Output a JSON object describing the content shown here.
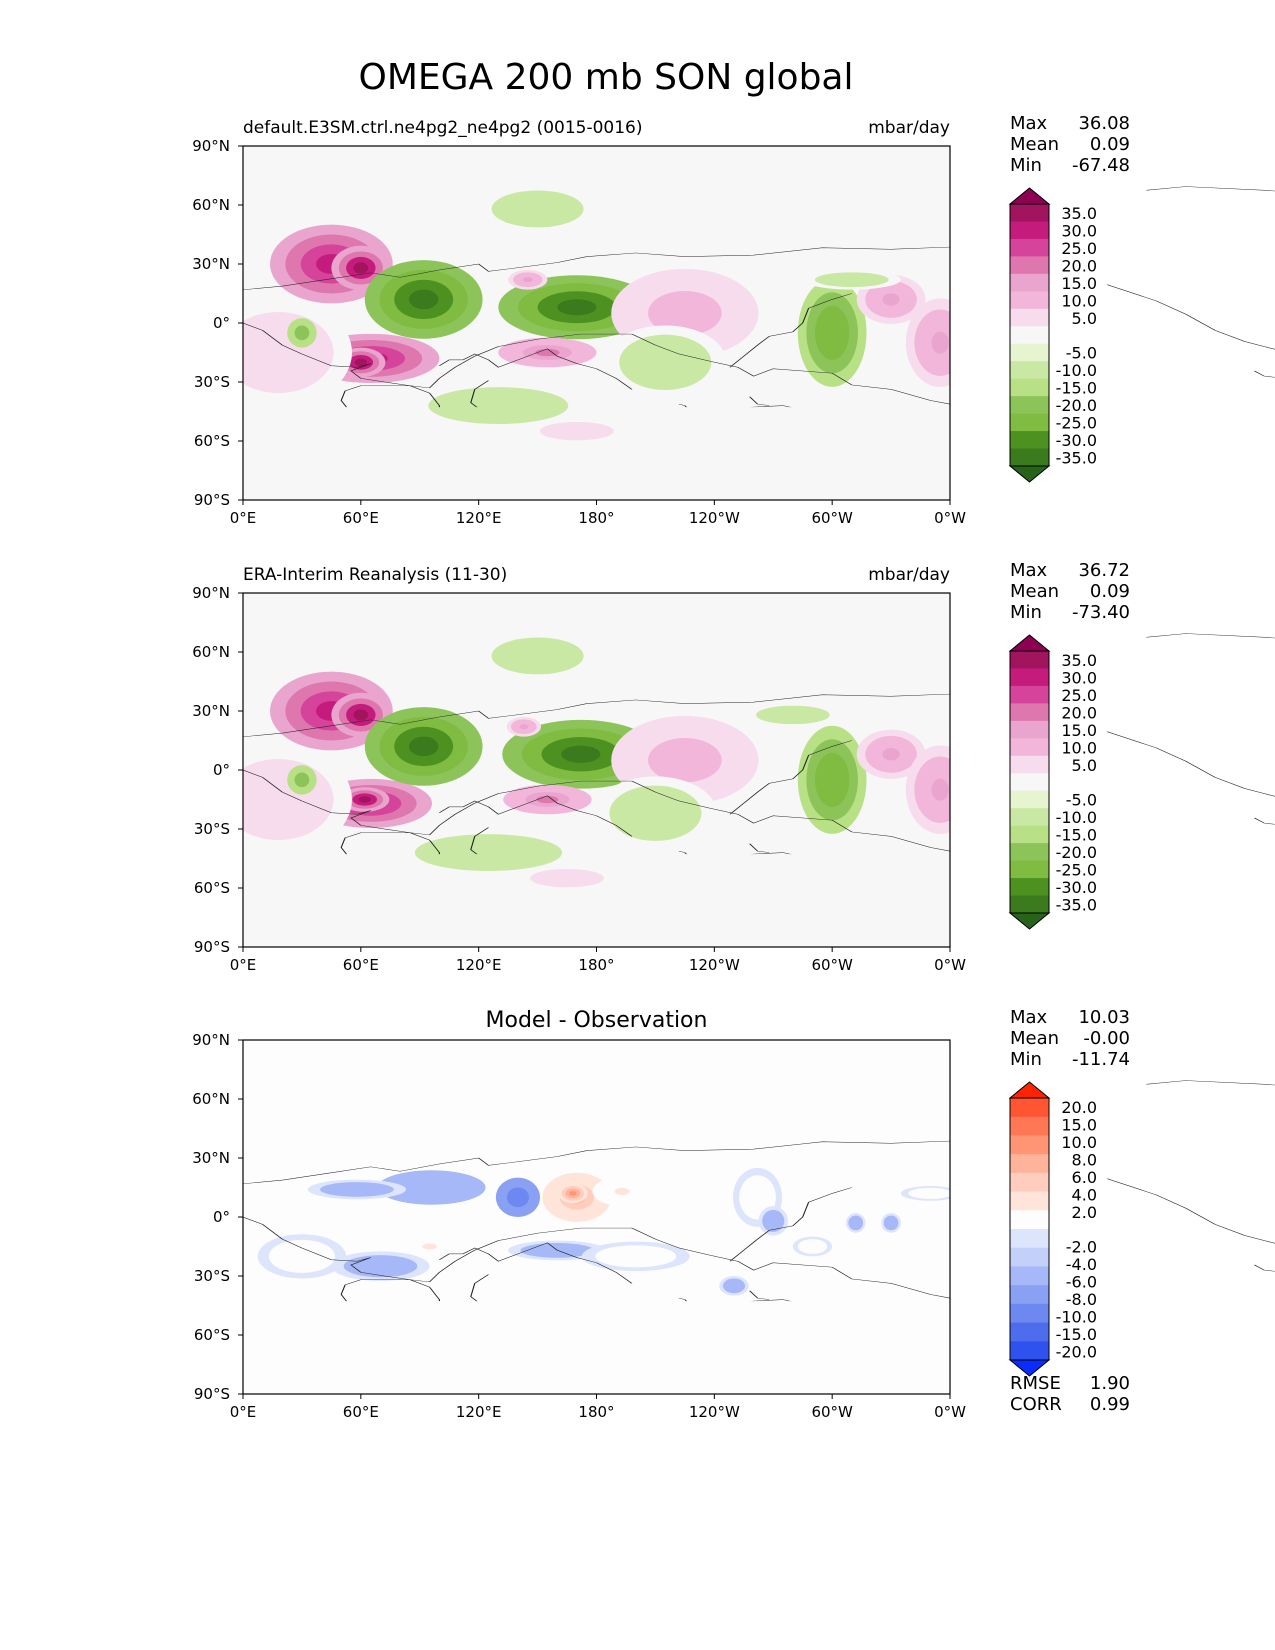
{
  "title": "OMEGA 200 mb SON global",
  "colors": {
    "land_line": "#222222",
    "ocean_bg": "#f7f7f7",
    "diff_bg": "#fdfdfd"
  },
  "chart_data": [
    {
      "type": "heatmap",
      "panel": "test",
      "left_title": "default.E3SM.ctrl.ne4pg2_ne4pg2 (0015-0016)",
      "right_title": "mbar/day",
      "xlabel": "",
      "ylabel": "",
      "xlim": [
        0,
        360
      ],
      "ylim": [
        -90,
        90
      ],
      "x_ticks": [
        "0°E",
        "60°E",
        "120°E",
        "180°",
        "120°W",
        "60°W",
        "0°W"
      ],
      "y_ticks": [
        "90°N",
        "60°N",
        "30°N",
        "0°",
        "30°S",
        "60°S",
        "90°S"
      ],
      "stats": [
        {
          "label": "Max",
          "value": "36.08"
        },
        {
          "label": "Mean",
          "value": "0.09"
        },
        {
          "label": "Min",
          "value": "-67.48"
        }
      ],
      "colorbar_levels": [
        "35.0",
        "30.0",
        "25.0",
        "20.0",
        "15.0",
        "10.0",
        "5.0",
        "-5.0",
        "-10.0",
        "-15.0",
        "-20.0",
        "-25.0",
        "-30.0",
        "-35.0"
      ],
      "colorbar_colors": [
        "#8e0152",
        "#a1145e",
        "#c51b7d",
        "#d6439a",
        "#de77ae",
        "#eaa5cf",
        "#f1b6da",
        "#f7dced",
        "#f7f7f7",
        "#e6f5d0",
        "#c9e8a3",
        "#b8e186",
        "#8cc45a",
        "#7fbc41",
        "#4d9221",
        "#3b7a1d",
        "#276419"
      ],
      "features": [
        {
          "lon": 45,
          "lat": 30,
          "rx": 25,
          "ry": 16,
          "value": 30
        },
        {
          "lon": 60,
          "lat": 28,
          "rx": 12,
          "ry": 9,
          "value": 36
        },
        {
          "lon": 65,
          "lat": -18,
          "rx": 28,
          "ry": 10,
          "value": 30
        },
        {
          "lon": 60,
          "lat": -20,
          "rx": 10,
          "ry": 6,
          "value": 36
        },
        {
          "lon": 18,
          "lat": -15,
          "rx": 30,
          "ry": 22,
          "value": 8
        },
        {
          "lon": 30,
          "lat": -5,
          "rx": 6,
          "ry": 6,
          "value": -20
        },
        {
          "lon": 92,
          "lat": 12,
          "rx": 24,
          "ry": 16,
          "value": -35
        },
        {
          "lon": 170,
          "lat": 8,
          "rx": 32,
          "ry": 13,
          "value": -35
        },
        {
          "lon": 155,
          "lat": -15,
          "rx": 20,
          "ry": 6,
          "value": 20
        },
        {
          "lon": 145,
          "lat": 22,
          "rx": 8,
          "ry": 4,
          "value": 15
        },
        {
          "lon": 225,
          "lat": 5,
          "rx": 30,
          "ry": 18,
          "value": 12
        },
        {
          "lon": 300,
          "lat": -5,
          "rx": 14,
          "ry": 22,
          "value": -25
        },
        {
          "lon": 330,
          "lat": 12,
          "rx": 14,
          "ry": 10,
          "value": 15
        },
        {
          "lon": 355,
          "lat": -10,
          "rx": 14,
          "ry": 18,
          "value": 15
        },
        {
          "lon": 130,
          "lat": -42,
          "rx": 38,
          "ry": 10,
          "value": -8
        },
        {
          "lon": 215,
          "lat": -20,
          "rx": 25,
          "ry": 15,
          "value": -8
        },
        {
          "lon": 150,
          "lat": 58,
          "rx": 25,
          "ry": 10,
          "value": -8
        },
        {
          "lon": 310,
          "lat": 22,
          "rx": 20,
          "ry": 4,
          "value": -8
        },
        {
          "lon": 170,
          "lat": -55,
          "rx": 20,
          "ry": 5,
          "value": 8
        }
      ]
    },
    {
      "type": "heatmap",
      "panel": "reference",
      "left_title": "ERA-Interim Reanalysis (11-30)",
      "right_title": "mbar/day",
      "xlabel": "",
      "ylabel": "",
      "xlim": [
        0,
        360
      ],
      "ylim": [
        -90,
        90
      ],
      "x_ticks": [
        "0°E",
        "60°E",
        "120°E",
        "180°",
        "120°W",
        "60°W",
        "0°W"
      ],
      "y_ticks": [
        "90°N",
        "60°N",
        "30°N",
        "0°",
        "30°S",
        "60°S",
        "90°S"
      ],
      "stats": [
        {
          "label": "Max",
          "value": "36.72"
        },
        {
          "label": "Mean",
          "value": "0.09"
        },
        {
          "label": "Min",
          "value": "-73.40"
        }
      ],
      "colorbar_levels": [
        "35.0",
        "30.0",
        "25.0",
        "20.0",
        "15.0",
        "10.0",
        "5.0",
        "-5.0",
        "-10.0",
        "-15.0",
        "-20.0",
        "-25.0",
        "-30.0",
        "-35.0"
      ],
      "colorbar_colors": [
        "#8e0152",
        "#a1145e",
        "#c51b7d",
        "#d6439a",
        "#de77ae",
        "#eaa5cf",
        "#f1b6da",
        "#f7dced",
        "#f7f7f7",
        "#e6f5d0",
        "#c9e8a3",
        "#b8e186",
        "#8cc45a",
        "#7fbc41",
        "#4d9221",
        "#3b7a1d",
        "#276419"
      ],
      "features": [
        {
          "lon": 45,
          "lat": 30,
          "rx": 25,
          "ry": 16,
          "value": 30
        },
        {
          "lon": 60,
          "lat": 28,
          "rx": 12,
          "ry": 9,
          "value": 36
        },
        {
          "lon": 65,
          "lat": -17,
          "rx": 25,
          "ry": 10,
          "value": 32
        },
        {
          "lon": 62,
          "lat": -15,
          "rx": 10,
          "ry": 5,
          "value": 37
        },
        {
          "lon": 18,
          "lat": -15,
          "rx": 30,
          "ry": 22,
          "value": 8
        },
        {
          "lon": 30,
          "lat": -5,
          "rx": 6,
          "ry": 6,
          "value": -20
        },
        {
          "lon": 92,
          "lat": 12,
          "rx": 24,
          "ry": 16,
          "value": -35
        },
        {
          "lon": 172,
          "lat": 8,
          "rx": 32,
          "ry": 14,
          "value": -35
        },
        {
          "lon": 155,
          "lat": -15,
          "rx": 18,
          "ry": 6,
          "value": 22
        },
        {
          "lon": 143,
          "lat": 22,
          "rx": 7,
          "ry": 4,
          "value": 15
        },
        {
          "lon": 225,
          "lat": 5,
          "rx": 30,
          "ry": 18,
          "value": 12
        },
        {
          "lon": 300,
          "lat": -5,
          "rx": 14,
          "ry": 22,
          "value": -25
        },
        {
          "lon": 330,
          "lat": 8,
          "rx": 14,
          "ry": 10,
          "value": 15
        },
        {
          "lon": 355,
          "lat": -10,
          "rx": 14,
          "ry": 18,
          "value": 15
        },
        {
          "lon": 125,
          "lat": -42,
          "rx": 40,
          "ry": 10,
          "value": -8
        },
        {
          "lon": 210,
          "lat": -22,
          "rx": 25,
          "ry": 15,
          "value": -8
        },
        {
          "lon": 150,
          "lat": 58,
          "rx": 25,
          "ry": 10,
          "value": -8
        },
        {
          "lon": 280,
          "lat": 28,
          "rx": 20,
          "ry": 5,
          "value": -8
        },
        {
          "lon": 165,
          "lat": -55,
          "rx": 20,
          "ry": 5,
          "value": 8
        }
      ]
    },
    {
      "type": "heatmap",
      "panel": "difference",
      "center_title": "Model - Observation",
      "xlabel": "",
      "ylabel": "",
      "xlim": [
        0,
        360
      ],
      "ylim": [
        -90,
        90
      ],
      "x_ticks": [
        "0°E",
        "60°E",
        "120°E",
        "180°",
        "120°W",
        "60°W",
        "0°W"
      ],
      "y_ticks": [
        "90°N",
        "60°N",
        "30°N",
        "0°",
        "30°S",
        "60°S",
        "90°S"
      ],
      "stats": [
        {
          "label": "Max",
          "value": "10.03"
        },
        {
          "label": "Mean",
          "value": "-0.00"
        },
        {
          "label": "Min",
          "value": "-11.74"
        }
      ],
      "metrics": [
        {
          "label": "RMSE",
          "value": "1.90"
        },
        {
          "label": "CORR",
          "value": "0.99"
        }
      ],
      "colorbar_levels": [
        "20.0",
        "15.0",
        "10.0",
        "8.0",
        "6.0",
        "4.0",
        "2.0",
        "-2.0",
        "-4.0",
        "-6.0",
        "-8.0",
        "-10.0",
        "-15.0",
        "-20.0"
      ],
      "colorbar_colors": [
        "#ff2400",
        "#ff5533",
        "#ff7755",
        "#ff9575",
        "#ffb39a",
        "#ffcdbd",
        "#ffe4da",
        "#fdfdfd",
        "#dde5fc",
        "#c3d0fa",
        "#a6b8f7",
        "#8aa0f3",
        "#6d88f0",
        "#4e6ded",
        "#2f52ee",
        "#0a2cff"
      ],
      "features": [
        {
          "lon": 170,
          "lat": 10,
          "rx": 14,
          "ry": 10,
          "value": 8
        },
        {
          "lon": 168,
          "lat": 12,
          "rx": 6,
          "ry": 4,
          "value": 10
        },
        {
          "lon": 193,
          "lat": 13,
          "rx": 12,
          "ry": 6,
          "value": 4
        },
        {
          "lon": 140,
          "lat": 10,
          "rx": 9,
          "ry": 8,
          "value": -8
        },
        {
          "lon": 96,
          "lat": 15,
          "rx": 22,
          "ry": 7,
          "value": -4
        },
        {
          "lon": 58,
          "lat": 14,
          "rx": 20,
          "ry": 4,
          "value": -3
        },
        {
          "lon": 95,
          "lat": -15,
          "rx": 12,
          "ry": 5,
          "value": 4
        },
        {
          "lon": 70,
          "lat": -25,
          "rx": 20,
          "ry": 6,
          "value": -3
        },
        {
          "lon": 160,
          "lat": -17,
          "rx": 20,
          "ry": 4,
          "value": -3
        },
        {
          "lon": 30,
          "lat": -20,
          "rx": 18,
          "ry": 9,
          "value": 3
        },
        {
          "lon": 200,
          "lat": -20,
          "rx": 22,
          "ry": 6,
          "value": 3
        },
        {
          "lon": 262,
          "lat": 10,
          "rx": 10,
          "ry": 12,
          "value": 3
        },
        {
          "lon": 270,
          "lat": -2,
          "rx": 6,
          "ry": 6,
          "value": -3
        },
        {
          "lon": 290,
          "lat": -15,
          "rx": 8,
          "ry": 4,
          "value": 3
        },
        {
          "lon": 350,
          "lat": 12,
          "rx": 12,
          "ry": 3,
          "value": 3
        },
        {
          "lon": 312,
          "lat": -3,
          "rx": 4,
          "ry": 4,
          "value": -3
        },
        {
          "lon": 330,
          "lat": -3,
          "rx": 4,
          "ry": 4,
          "value": -3
        },
        {
          "lon": 250,
          "lat": -35,
          "rx": 6,
          "ry": 4,
          "value": -3
        }
      ]
    }
  ]
}
